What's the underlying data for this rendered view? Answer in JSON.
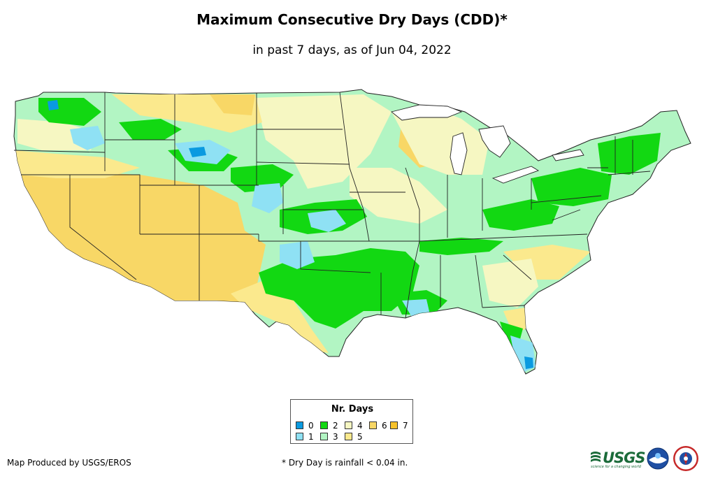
{
  "title": "Maximum Consecutive Dry Days (CDD)*",
  "subtitle": "in past 7 days, as of Jun 04, 2022",
  "legend": {
    "title": "Nr. Days",
    "items": [
      {
        "label": "0",
        "color": "#0a9ae0"
      },
      {
        "label": "1",
        "color": "#8fe1f4"
      },
      {
        "label": "2",
        "color": "#12d812"
      },
      {
        "label": "3",
        "color": "#b2f5c3"
      },
      {
        "label": "4",
        "color": "#f6f7c2"
      },
      {
        "label": "5",
        "color": "#fbe98d"
      },
      {
        "label": "6",
        "color": "#f8d766"
      },
      {
        "label": "7",
        "color": "#f7c22a"
      }
    ]
  },
  "footer": {
    "credit": "Map Produced by USGS/EROS",
    "footnote": "* Dry Day is rainfall < 0.04 in."
  },
  "logos": {
    "usgs": "USGS",
    "usgs_tagline": "science for a changing world",
    "noaa_icon": "noaa-logo-icon",
    "nws_icon": "nws-logo-icon"
  }
}
